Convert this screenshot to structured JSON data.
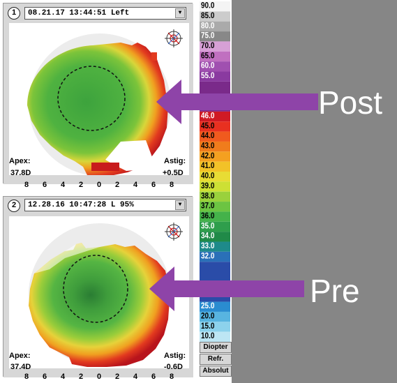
{
  "panels": [
    {
      "number": "1",
      "selector": "08.21.17 13:44:51 Left",
      "apex_label": "Apex:",
      "apex_value": "37.8D",
      "astig_label": "Astig:",
      "astig_value": "+0.5D"
    },
    {
      "number": "2",
      "selector": "12.28.16 10:47:28 L 95%",
      "apex_label": "Apex:",
      "apex_value": "37.4D",
      "astig_label": "Astig:",
      "astig_value": "-0.6D"
    }
  ],
  "axis_ticks": [
    "8",
    "6",
    "4",
    "2",
    "0",
    "2",
    "4",
    "6",
    "8"
  ],
  "scale": {
    "values": [
      "90.0",
      "85.0",
      "80.0",
      "75.0",
      "70.0",
      "65.0",
      "60.0",
      "55.0",
      "46.0",
      "45.0",
      "44.0",
      "43.0",
      "42.0",
      "41.0",
      "40.0",
      "39.0",
      "38.0",
      "37.0",
      "36.0",
      "35.0",
      "34.0",
      "33.0",
      "32.0",
      "25.0",
      "20.0",
      "15.0",
      "10.0"
    ],
    "buttons": [
      "Diopter",
      "Refr.",
      "Absolut"
    ]
  },
  "callouts": {
    "post": "Post",
    "pre": "Pre"
  },
  "colors": {
    "arrow": "#8e44a8",
    "background": "#868686"
  }
}
